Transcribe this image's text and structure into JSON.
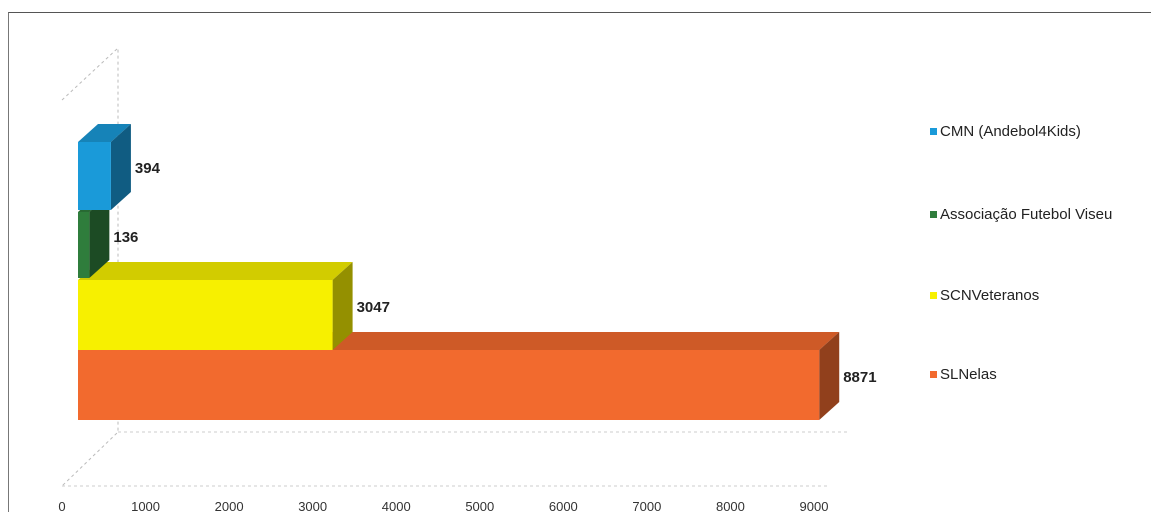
{
  "chart_data": {
    "type": "bar",
    "orientation": "horizontal",
    "three_d": true,
    "title": "",
    "xlabel": "",
    "ylabel": "",
    "xlim": [
      0,
      9000
    ],
    "x_ticks": [
      "0",
      "1000",
      "2000",
      "3000",
      "4000",
      "5000",
      "6000",
      "7000",
      "8000",
      "9000"
    ],
    "categories": [
      "CMN (Andebol4Kids)",
      "Associação Futebol Viseu",
      "SCNVeteranos",
      "SLNelas"
    ],
    "values": [
      394,
      136,
      3047,
      8871
    ],
    "value_labels": [
      "394",
      "136",
      "3047",
      "8871"
    ],
    "colors": [
      "#1a9ad9",
      "#2f7d3c",
      "#f7f000",
      "#f26a2e"
    ],
    "legend_position": "right",
    "grid": false
  }
}
